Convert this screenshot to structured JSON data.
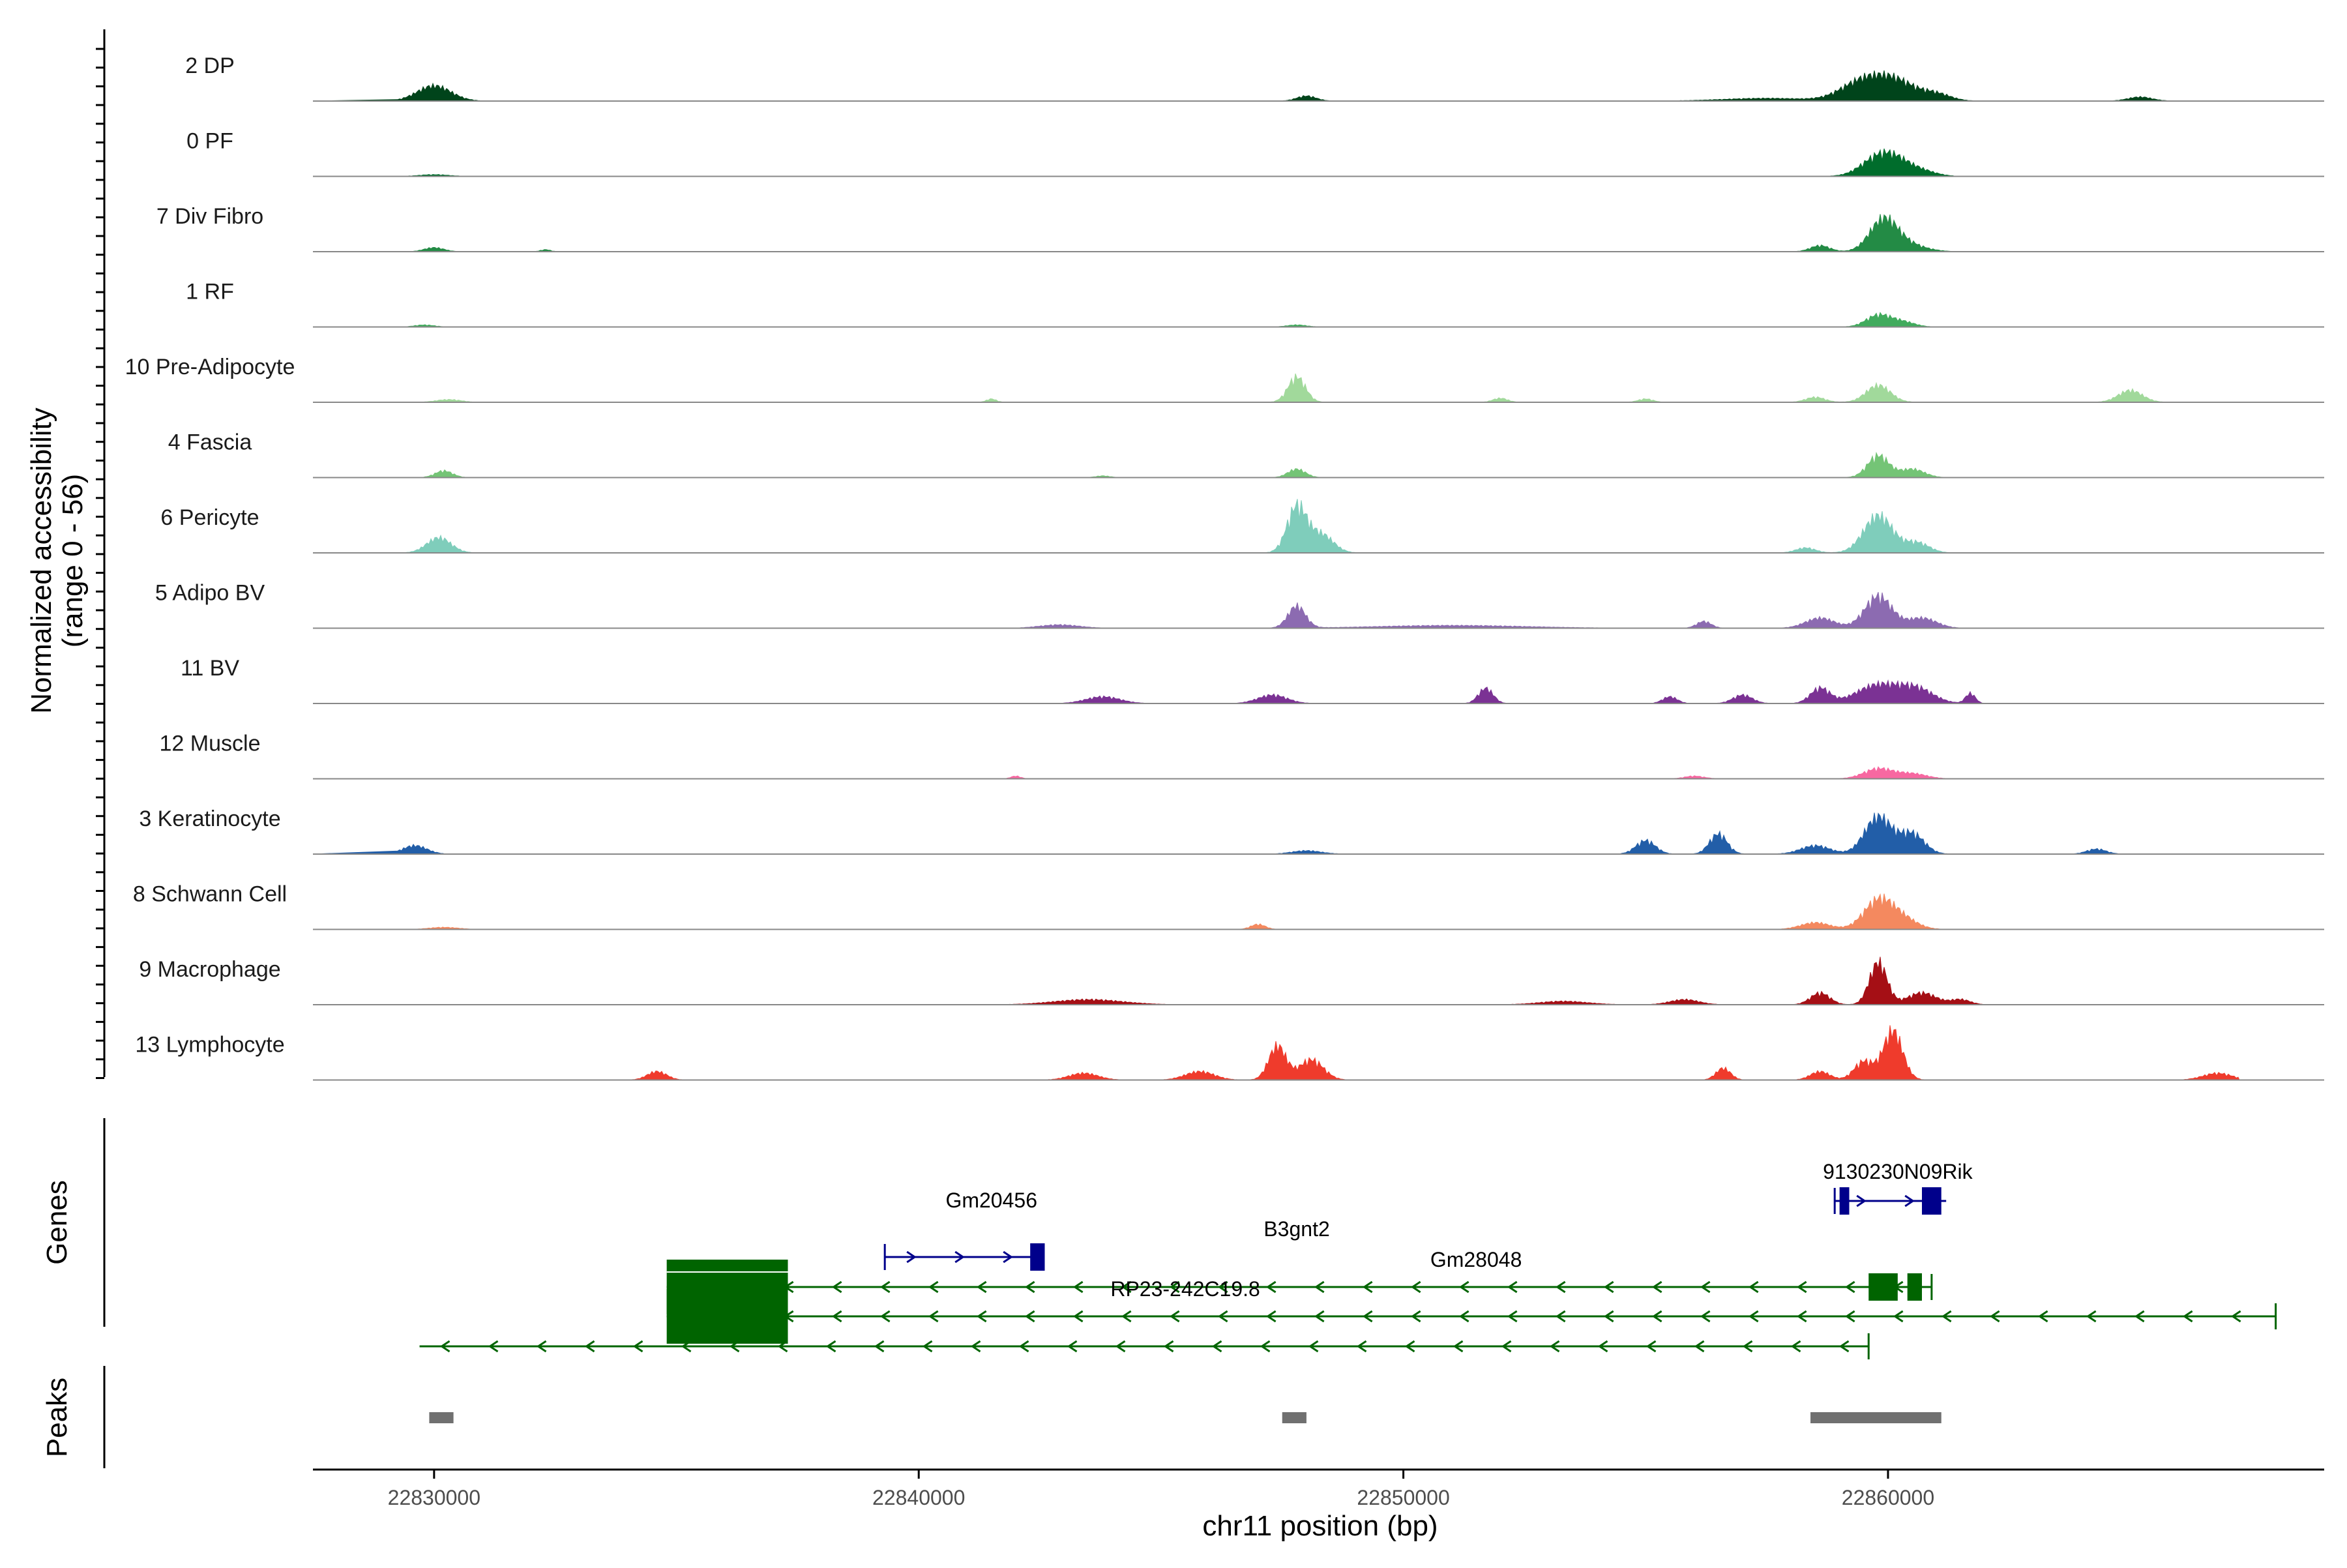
{
  "chart_data": {
    "type": "area",
    "region": "chr11",
    "xlabel": "chr11 position (bp)",
    "ylabel_line1": "Normalized accessibility",
    "ylabel_line2": "(range 0 - 56)",
    "xlim": [
      22827500,
      22869000
    ],
    "ylim": [
      0,
      56
    ],
    "xticks": [
      22830000,
      22840000,
      22850000,
      22860000
    ],
    "xtick_labels": [
      "22830000",
      "22840000",
      "22850000",
      "22860000"
    ],
    "series": [
      {
        "name": "2 DP",
        "color": "#00441b",
        "peaks": [
          [
            22830000,
            0.45,
            350
          ],
          [
            22848000,
            0.15,
            200
          ],
          [
            22857500,
            0.08,
            900
          ],
          [
            22859500,
            0.6,
            450
          ],
          [
            22860200,
            0.5,
            400
          ],
          [
            22861000,
            0.2,
            300
          ],
          [
            22865200,
            0.12,
            250
          ]
        ]
      },
      {
        "name": "0 PF",
        "color": "#006d2c",
        "peaks": [
          [
            22830000,
            0.05,
            300
          ],
          [
            22859800,
            0.55,
            350
          ],
          [
            22860200,
            0.3,
            300
          ],
          [
            22860700,
            0.15,
            300
          ]
        ]
      },
      {
        "name": "7 Div Fibro",
        "color": "#238b45",
        "peaks": [
          [
            22830000,
            0.12,
            200
          ],
          [
            22832300,
            0.06,
            100
          ],
          [
            22859900,
            0.85,
            280
          ],
          [
            22860300,
            0.25,
            400
          ],
          [
            22858600,
            0.18,
            200
          ]
        ]
      },
      {
        "name": "1 RF",
        "color": "#41ab5d",
        "peaks": [
          [
            22829800,
            0.06,
            200
          ],
          [
            22847800,
            0.06,
            200
          ],
          [
            22859800,
            0.35,
            250
          ],
          [
            22860300,
            0.15,
            250
          ]
        ]
      },
      {
        "name": "10 Pre-Adipocyte",
        "color": "#a1d99b",
        "peaks": [
          [
            22830300,
            0.08,
            250
          ],
          [
            22841500,
            0.1,
            100
          ],
          [
            22847800,
            0.75,
            180
          ],
          [
            22852000,
            0.12,
            150
          ],
          [
            22855000,
            0.1,
            150
          ],
          [
            22859800,
            0.5,
            250
          ],
          [
            22865000,
            0.35,
            250
          ],
          [
            22858500,
            0.15,
            200
          ]
        ]
      },
      {
        "name": "4 Fascia",
        "color": "#74c476",
        "peaks": [
          [
            22830200,
            0.2,
            180
          ],
          [
            22847800,
            0.25,
            180
          ],
          [
            22843800,
            0.05,
            150
          ],
          [
            22859800,
            0.65,
            220
          ],
          [
            22860500,
            0.25,
            250
          ]
        ]
      },
      {
        "name": "6 Pericyte",
        "color": "#7fcdbb",
        "peaks": [
          [
            22830100,
            0.45,
            250
          ],
          [
            22847800,
            1.35,
            200
          ],
          [
            22848300,
            0.55,
            250
          ],
          [
            22859800,
            1.1,
            300
          ],
          [
            22860600,
            0.3,
            250
          ],
          [
            22858300,
            0.15,
            200
          ]
        ]
      },
      {
        "name": "5 Adipo BV",
        "color": "#8c6bb1",
        "peaks": [
          [
            22847800,
            0.65,
            180
          ],
          [
            22859800,
            0.95,
            280
          ],
          [
            22858600,
            0.3,
            300
          ],
          [
            22860700,
            0.3,
            300
          ],
          [
            22842900,
            0.1,
            400
          ],
          [
            22856200,
            0.2,
            150
          ],
          [
            22851000,
            0.08,
            1500
          ]
        ]
      },
      {
        "name": "11 BV",
        "color": "#7b3294",
        "peaks": [
          [
            22859800,
            0.55,
            450
          ],
          [
            22860600,
            0.4,
            350
          ],
          [
            22858600,
            0.45,
            200
          ],
          [
            22851700,
            0.45,
            150
          ],
          [
            22847300,
            0.25,
            300
          ],
          [
            22843800,
            0.2,
            350
          ],
          [
            22855500,
            0.2,
            150
          ],
          [
            22861700,
            0.3,
            100
          ],
          [
            22857000,
            0.25,
            200
          ]
        ]
      },
      {
        "name": "12 Muscle",
        "color": "#f768a1",
        "peaks": [
          [
            22859800,
            0.3,
            300
          ],
          [
            22860500,
            0.15,
            300
          ],
          [
            22842000,
            0.08,
            100
          ],
          [
            22856000,
            0.08,
            200
          ]
        ]
      },
      {
        "name": "3 Keratinocyte",
        "color": "#225ea8",
        "peaks": [
          [
            22829600,
            0.25,
            250
          ],
          [
            22855000,
            0.4,
            200
          ],
          [
            22856500,
            0.6,
            180
          ],
          [
            22859800,
            1.1,
            280
          ],
          [
            22860500,
            0.6,
            250
          ],
          [
            22858500,
            0.25,
            300
          ],
          [
            22848000,
            0.1,
            300
          ],
          [
            22864300,
            0.15,
            200
          ]
        ]
      },
      {
        "name": "8 Schwann Cell",
        "color": "#f4895f",
        "peaks": [
          [
            22859800,
            0.85,
            300
          ],
          [
            22860300,
            0.3,
            300
          ],
          [
            22858500,
            0.2,
            300
          ],
          [
            22847000,
            0.15,
            150
          ],
          [
            22830200,
            0.06,
            300
          ]
        ]
      },
      {
        "name": "9 Macrophage",
        "color": "#a50f15",
        "peaks": [
          [
            22859800,
            1.25,
            180
          ],
          [
            22858600,
            0.35,
            200
          ],
          [
            22860700,
            0.35,
            300
          ],
          [
            22861500,
            0.15,
            200
          ],
          [
            22843500,
            0.15,
            700
          ],
          [
            22855800,
            0.15,
            300
          ],
          [
            22853300,
            0.1,
            500
          ]
        ]
      },
      {
        "name": "13 Lymphocyte",
        "color": "#ef3b2c",
        "peaks": [
          [
            22860100,
            1.45,
            200
          ],
          [
            22859500,
            0.55,
            200
          ],
          [
            22847400,
            1.0,
            180
          ],
          [
            22848100,
            0.6,
            250
          ],
          [
            22856600,
            0.35,
            150
          ],
          [
            22858600,
            0.25,
            200
          ],
          [
            22834600,
            0.25,
            200
          ],
          [
            22845800,
            0.25,
            300
          ],
          [
            22866800,
            0.2,
            300
          ],
          [
            22843400,
            0.2,
            300
          ]
        ]
      }
    ],
    "genes_label": "Genes",
    "peaks_label": "Peaks",
    "genes": [
      {
        "name": "Gm20456",
        "start": 22839300,
        "end": 22842600,
        "strand": "+",
        "color": "#00008b",
        "row": 1,
        "exons": [
          [
            22842300,
            22842600
          ]
        ]
      },
      {
        "name": "B3gnt2",
        "start": 22834800,
        "end": 22860900,
        "strand": "-",
        "color": "#006400",
        "row": 2,
        "exons": [
          [
            22834800,
            22837300
          ],
          [
            22859600,
            22860200
          ],
          [
            22860400,
            22860700
          ]
        ]
      },
      {
        "name": "Gm28048",
        "start": 22834800,
        "end": 22868000,
        "strand": "-",
        "color": "#006400",
        "row": 3,
        "exons": [
          [
            22834800,
            22837300
          ]
        ]
      },
      {
        "name": "RP23-242C19.8",
        "start": 22829700,
        "end": 22859600,
        "strand": "-",
        "color": "#006400",
        "row": 4,
        "exons": []
      },
      {
        "name": "9130230N09Rik",
        "start": 22858900,
        "end": 22861200,
        "strand": "+",
        "color": "#00008b",
        "row": 0,
        "exons": [
          [
            22859000,
            22859200
          ],
          [
            22860700,
            22861100
          ]
        ]
      }
    ],
    "peaks": [
      [
        22829900,
        22830400
      ],
      [
        22847500,
        22848000
      ],
      [
        22858400,
        22861100
      ]
    ]
  }
}
